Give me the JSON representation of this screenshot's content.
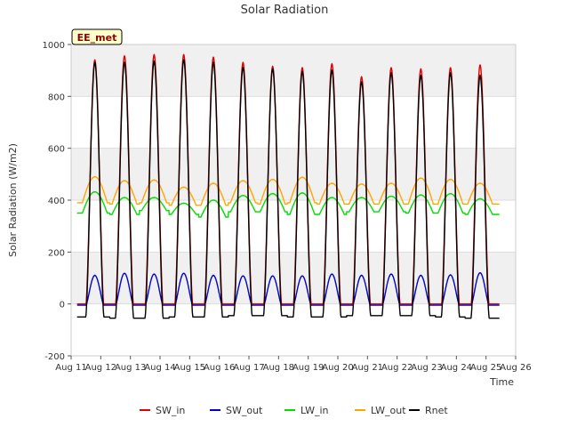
{
  "chart_data": {
    "type": "line",
    "title": "Solar Radiation",
    "xlabel": "Time",
    "ylabel": "Solar Radiation (W/m2)",
    "annotation": "EE_met",
    "xlim": [
      11,
      26
    ],
    "ylim": [
      -200,
      1000
    ],
    "x_ticks": [
      {
        "v": 11,
        "label": "Aug 11"
      },
      {
        "v": 12,
        "label": "Aug 12"
      },
      {
        "v": 13,
        "label": "Aug 13"
      },
      {
        "v": 14,
        "label": "Aug 14"
      },
      {
        "v": 15,
        "label": "Aug 15"
      },
      {
        "v": 16,
        "label": "Aug 16"
      },
      {
        "v": 17,
        "label": "Aug 17"
      },
      {
        "v": 18,
        "label": "Aug 18"
      },
      {
        "v": 19,
        "label": "Aug 19"
      },
      {
        "v": 20,
        "label": "Aug 20"
      },
      {
        "v": 21,
        "label": "Aug 21"
      },
      {
        "v": 22,
        "label": "Aug 22"
      },
      {
        "v": 23,
        "label": "Aug 23"
      },
      {
        "v": 24,
        "label": "Aug 24"
      },
      {
        "v": 25,
        "label": "Aug 25"
      },
      {
        "v": 26,
        "label": "Aug 26"
      }
    ],
    "y_ticks": [
      -200,
      0,
      200,
      400,
      600,
      800,
      1000
    ],
    "grid": true,
    "legend_position": "bottom",
    "daily_peak_x": [
      11.8,
      12.8,
      13.8,
      14.8,
      15.8,
      16.8,
      17.8,
      18.8,
      19.8,
      20.8,
      21.8,
      22.8,
      23.8,
      24.8
    ],
    "series": [
      {
        "name": "SW_in",
        "color": "#e00000",
        "daily_min": [
          0,
          0,
          0,
          0,
          0,
          0,
          0,
          0,
          0,
          0,
          0,
          0,
          0,
          0
        ],
        "daily_max": [
          940,
          955,
          960,
          960,
          950,
          930,
          915,
          910,
          925,
          875,
          910,
          905,
          910,
          920
        ]
      },
      {
        "name": "SW_out",
        "color": "#0000d0",
        "daily_min": [
          -5,
          -5,
          -5,
          -5,
          -5,
          -5,
          -5,
          -5,
          -5,
          -5,
          -5,
          -5,
          -5,
          -5
        ],
        "daily_max": [
          110,
          118,
          115,
          118,
          110,
          108,
          108,
          108,
          115,
          110,
          115,
          110,
          112,
          120
        ]
      },
      {
        "name": "LW_in",
        "color": "#00dd00",
        "daily_min": [
          350,
          345,
          360,
          345,
          335,
          355,
          355,
          345,
          345,
          355,
          355,
          350,
          350,
          345
        ],
        "daily_max": [
          432,
          410,
          410,
          388,
          400,
          418,
          425,
          428,
          410,
          410,
          415,
          420,
          425,
          405
        ]
      },
      {
        "name": "LW_out",
        "color": "#ffa500",
        "daily_min": [
          390,
          385,
          390,
          380,
          380,
          390,
          385,
          390,
          385,
          385,
          385,
          385,
          385,
          385
        ],
        "daily_max": [
          490,
          475,
          478,
          450,
          465,
          475,
          480,
          488,
          465,
          462,
          465,
          485,
          480,
          465
        ]
      },
      {
        "name": "Rnet",
        "color": "#000000",
        "daily_min": [
          -50,
          -55,
          -55,
          -50,
          -50,
          -45,
          -45,
          -50,
          -50,
          -45,
          -45,
          -45,
          -50,
          -55
        ],
        "daily_max": [
          930,
          930,
          935,
          940,
          930,
          910,
          905,
          895,
          900,
          855,
          890,
          880,
          890,
          880
        ]
      }
    ]
  }
}
